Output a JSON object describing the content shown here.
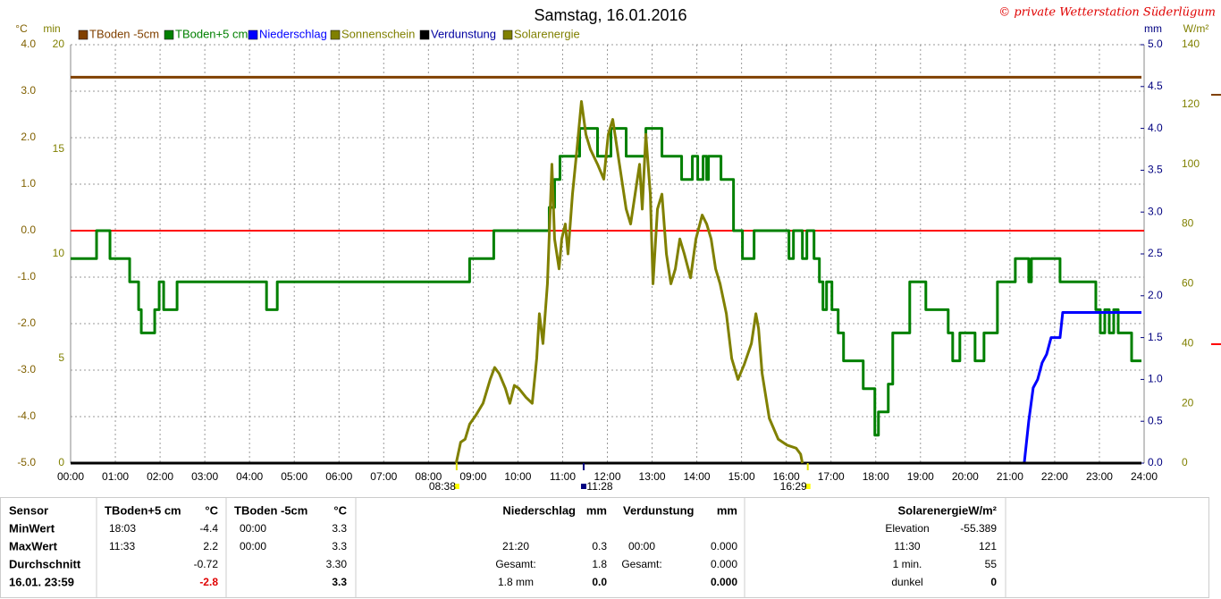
{
  "chart_data": {
    "type": "line",
    "title": "Samstag, 16.01.2016",
    "credit": "© private Wetterstation Süderlügum",
    "axis_labels": {
      "y": "°C",
      "y2": "min",
      "y3": "mm",
      "y4": "W/m²"
    },
    "xlim": [
      0,
      24
    ],
    "xticks": [
      {
        "value": 0,
        "label": "00:00"
      },
      {
        "value": 1,
        "label": "01:00"
      },
      {
        "value": 2,
        "label": "02:00"
      },
      {
        "value": 3,
        "label": "03:00"
      },
      {
        "value": 4,
        "label": "04:00"
      },
      {
        "value": 5,
        "label": "05:00"
      },
      {
        "value": 6,
        "label": "06:00"
      },
      {
        "value": 7,
        "label": "07:00"
      },
      {
        "value": 8,
        "label": "08:00"
      },
      {
        "value": 9,
        "label": "09:00"
      },
      {
        "value": 10,
        "label": "10:00"
      },
      {
        "value": 11,
        "label": "11:00"
      },
      {
        "value": 12,
        "label": "12:00"
      },
      {
        "value": 13,
        "label": "13:00"
      },
      {
        "value": 14,
        "label": "14:00"
      },
      {
        "value": 15,
        "label": "15:00"
      },
      {
        "value": 16,
        "label": "16:00"
      },
      {
        "value": 17,
        "label": "17:00"
      },
      {
        "value": 18,
        "label": "18:00"
      },
      {
        "value": 19,
        "label": "19:00"
      },
      {
        "value": 20,
        "label": "20:00"
      },
      {
        "value": 21,
        "label": "21:00"
      },
      {
        "value": 22,
        "label": "22:00"
      },
      {
        "value": 23,
        "label": "23:00"
      },
      {
        "value": 24,
        "label": "24:00"
      }
    ],
    "ylim": [
      -5,
      4
    ],
    "yticks": [
      {
        "value": -5,
        "label": "-5.0"
      },
      {
        "value": -4,
        "label": "-4.0"
      },
      {
        "value": -3,
        "label": "-3.0"
      },
      {
        "value": -2,
        "label": "-2.0"
      },
      {
        "value": -1,
        "label": "-1.0"
      },
      {
        "value": 0,
        "label": "0.0"
      },
      {
        "value": 1,
        "label": "1.0"
      },
      {
        "value": 2,
        "label": "2.0"
      },
      {
        "value": 3,
        "label": "3.0"
      },
      {
        "value": 4,
        "label": "4.0"
      }
    ],
    "y2lim": [
      0,
      20
    ],
    "y2ticks": [
      0,
      5,
      10,
      15,
      20
    ],
    "y3lim": [
      0,
      5
    ],
    "y3ticks": [
      {
        "value": 0,
        "label": "0.0"
      },
      {
        "value": 0.5,
        "label": "0.5"
      },
      {
        "value": 1,
        "label": "1.0"
      },
      {
        "value": 1.5,
        "label": "1.5"
      },
      {
        "value": 2,
        "label": "2.0"
      },
      {
        "value": 2.5,
        "label": "2.5"
      },
      {
        "value": 3,
        "label": "3.0"
      },
      {
        "value": 3.5,
        "label": "3.5"
      },
      {
        "value": 4,
        "label": "4.0"
      },
      {
        "value": 4.5,
        "label": "4.5"
      },
      {
        "value": 5,
        "label": "5.0"
      }
    ],
    "y4lim": [
      0,
      140
    ],
    "y4ticks": [
      0,
      20,
      40,
      60,
      80,
      100,
      120,
      140
    ],
    "grid": true,
    "reference_line": {
      "value": 0,
      "color": "#ff0000"
    },
    "series": [
      {
        "name": "TBoden -5cm",
        "color": "#804000",
        "axis": "y",
        "x": [
          0,
          23.94
        ],
        "values": [
          3.3,
          3.3
        ]
      },
      {
        "name": "TBoden+5 cm",
        "color": "#008000",
        "axis": "y",
        "step": true,
        "x": [
          0,
          0.58,
          0.88,
          1.32,
          1.52,
          1.58,
          1.88,
          1.98,
          2.08,
          2.38,
          4.38,
          4.62,
          8.92,
          9.46,
          10.7,
          10.82,
          10.94,
          11.38,
          11.78,
          12.08,
          12.42,
          12.86,
          13.22,
          13.66,
          13.9,
          14.02,
          14.14,
          14.22,
          14.26,
          14.54,
          14.82,
          15.02,
          15.28,
          16.06,
          16.16,
          16.36,
          16.46,
          16.62,
          16.74,
          16.82,
          16.9,
          17.02,
          17.16,
          17.28,
          17.72,
          17.98,
          18.06,
          18.28,
          18.38,
          18.76,
          19.12,
          19.62,
          19.72,
          19.88,
          20.22,
          20.42,
          20.72,
          21.12,
          21.42,
          21.48,
          22.12,
          22.92,
          23.02,
          23.12,
          23.22,
          23.32,
          23.42,
          23.72,
          23.94
        ],
        "values": [
          -0.6,
          0.0,
          -0.6,
          -1.1,
          -1.7,
          -2.2,
          -1.7,
          -1.1,
          -1.7,
          -1.1,
          -1.7,
          -1.1,
          -0.6,
          0.0,
          0.5,
          1.1,
          1.6,
          2.2,
          1.6,
          2.2,
          1.6,
          2.2,
          1.6,
          1.1,
          1.6,
          1.1,
          1.6,
          1.1,
          1.6,
          1.1,
          0.0,
          -0.6,
          0.0,
          -0.6,
          0.0,
          -0.6,
          0.0,
          -0.6,
          -1.1,
          -1.7,
          -1.1,
          -1.7,
          -2.2,
          -2.8,
          -3.4,
          -4.4,
          -3.9,
          -3.3,
          -2.2,
          -1.1,
          -1.7,
          -2.2,
          -2.8,
          -2.2,
          -2.8,
          -2.2,
          -1.1,
          -0.6,
          -1.1,
          -0.6,
          -1.1,
          -1.7,
          -2.2,
          -1.7,
          -2.2,
          -1.7,
          -2.2,
          -2.8,
          -2.8
        ]
      },
      {
        "name": "Niederschlag",
        "color": "#0000ff",
        "axis": "y3",
        "x": [
          0,
          21.32,
          21.42,
          21.52,
          21.62,
          21.72,
          21.82,
          21.92,
          22.12,
          22.18,
          23.94
        ],
        "values": [
          0,
          0,
          0.5,
          0.9,
          1.0,
          1.2,
          1.3,
          1.5,
          1.5,
          1.8,
          1.8
        ]
      },
      {
        "name": "Sonnenschein",
        "color": "#808000",
        "axis": "y2",
        "x": [
          0,
          23.94
        ],
        "values": [
          0,
          0
        ]
      },
      {
        "name": "Verdunstung",
        "color": "#000000",
        "axis": "y3",
        "x": [
          0,
          23.94
        ],
        "values": [
          0,
          0
        ]
      },
      {
        "name": "Solarenergie",
        "color": "#808000",
        "axis": "y4",
        "x": [
          8.62,
          8.72,
          8.82,
          8.92,
          9.06,
          9.22,
          9.38,
          9.48,
          9.58,
          9.72,
          9.82,
          9.92,
          10.02,
          10.18,
          10.32,
          10.42,
          10.48,
          10.56,
          10.66,
          10.76,
          10.82,
          10.92,
          10.98,
          11.06,
          11.12,
          11.22,
          11.32,
          11.42,
          11.52,
          11.62,
          11.78,
          11.92,
          12.02,
          12.12,
          12.22,
          12.32,
          12.42,
          12.52,
          12.62,
          12.72,
          12.78,
          12.86,
          12.96,
          13.02,
          13.12,
          13.22,
          13.32,
          13.42,
          13.52,
          13.62,
          13.72,
          13.86,
          13.98,
          14.12,
          14.22,
          14.32,
          14.42,
          14.52,
          14.66,
          14.78,
          14.92,
          15.06,
          15.22,
          15.32,
          15.38,
          15.46,
          15.62,
          15.82,
          16.02,
          16.22,
          16.32,
          16.36
        ],
        "values": [
          0,
          7,
          8,
          13,
          16,
          20,
          28,
          32,
          30,
          25,
          20,
          26,
          25,
          22,
          20,
          35,
          50,
          40,
          60,
          100,
          75,
          65,
          75,
          80,
          70,
          90,
          105,
          121,
          110,
          105,
          100,
          95,
          110,
          115,
          105,
          95,
          85,
          80,
          90,
          100,
          85,
          110,
          90,
          60,
          85,
          90,
          70,
          60,
          65,
          75,
          70,
          62,
          75,
          83,
          80,
          75,
          65,
          60,
          50,
          35,
          28,
          33,
          40,
          50,
          45,
          30,
          15,
          8,
          6,
          5,
          3,
          0
        ]
      }
    ],
    "sun_events": [
      {
        "x": 8.63,
        "label": "08:38"
      },
      {
        "x": 11.47,
        "label": "11:28"
      },
      {
        "x": 16.48,
        "label": "16:29"
      }
    ]
  },
  "table": {
    "header": [
      "Sensor",
      "TBoden+5 cm",
      "°C",
      "TBoden -5cm",
      "°C",
      "Niederschlag",
      "mm",
      "Verdunstung",
      "mm",
      "SolarenergieW/m²"
    ],
    "rows": [
      [
        "MinWert",
        "18:03",
        "-4.4",
        "00:00",
        "3.3",
        null,
        null,
        null,
        null,
        "Elevation",
        "-55.389"
      ],
      [
        "MaxWert",
        "11:33",
        "2.2",
        "00:00",
        "3.3",
        "21:20",
        "0.3",
        "00:00",
        "0.000",
        "11:30",
        "121"
      ],
      [
        "Durchschnitt",
        null,
        "-0.72",
        null,
        "3.30",
        "Gesamt:",
        "1.8",
        "Gesamt:",
        "0.000",
        "1 min.",
        "55"
      ],
      [
        "16.01. 23:59",
        null,
        "-2.8",
        null,
        "3.3",
        "1.8 mm",
        "0.0",
        null,
        "0.000",
        "dunkel",
        "0"
      ]
    ]
  }
}
